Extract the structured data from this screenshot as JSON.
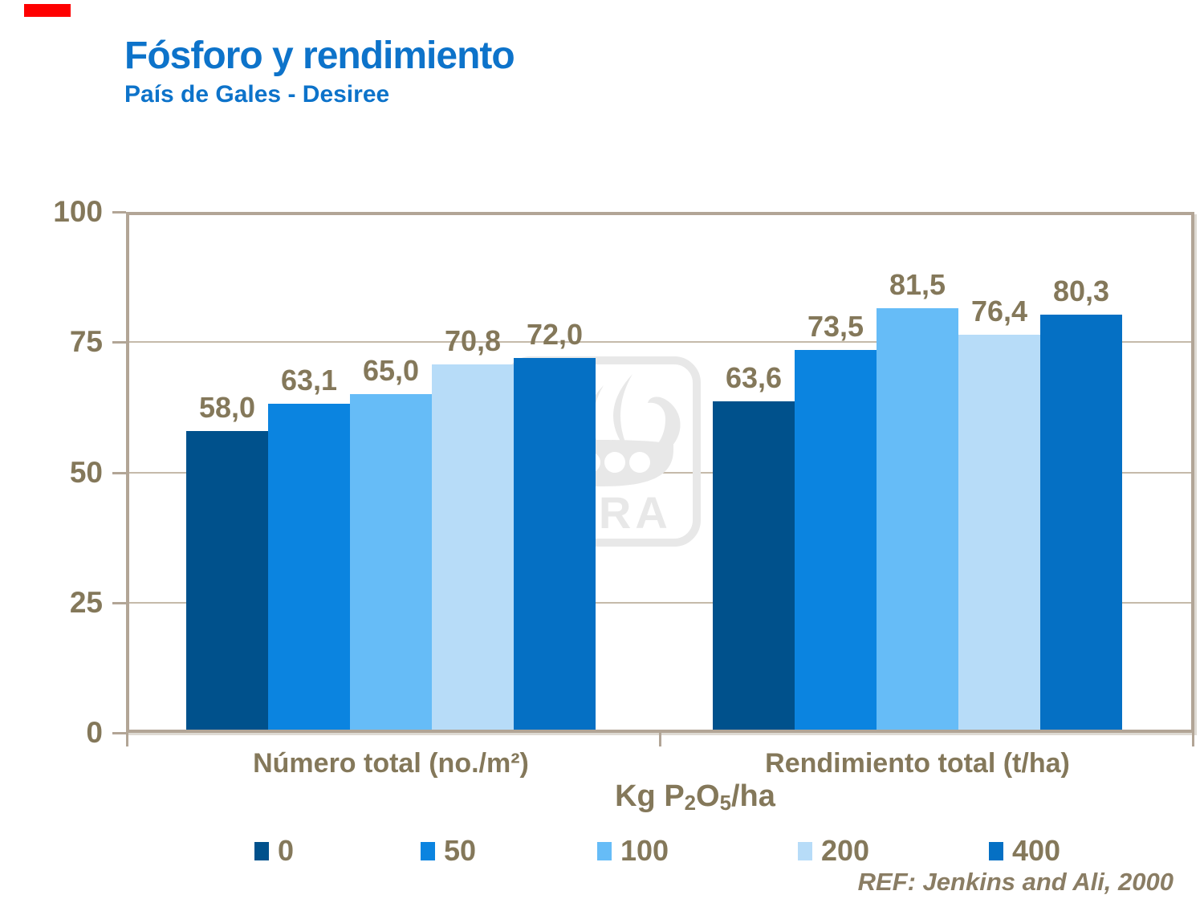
{
  "header": {
    "title": "Fósforo y rendimiento",
    "subtitle": "País de Gales - Desiree"
  },
  "accent": {
    "top_left_bar_color": "#FE0000"
  },
  "watermark": {
    "text": "YARA"
  },
  "footer": {
    "reference": "REF: Jenkins and Ali, 2000"
  },
  "chart_data": {
    "type": "bar",
    "title": "Fósforo y rendimiento",
    "subtitle": "País de Gales - Desiree",
    "categories": [
      "Número total (no./m²)",
      "Rendimiento total (t/ha)"
    ],
    "legend_title": "Kg P2O5/ha",
    "legend_title_parts": [
      {
        "text": "Kg P"
      },
      {
        "text": "2",
        "subscript": true
      },
      {
        "text": "O"
      },
      {
        "text": "5",
        "subscript": true
      },
      {
        "text": "/ha"
      }
    ],
    "series": [
      {
        "name": "0",
        "color": "#00518C",
        "values": [
          58.0,
          63.6
        ]
      },
      {
        "name": "50",
        "color": "#0B84E0",
        "values": [
          63.1,
          73.5
        ]
      },
      {
        "name": "100",
        "color": "#66BCF7",
        "values": [
          65.0,
          81.5
        ]
      },
      {
        "name": "200",
        "color": "#B7DCF8",
        "values": [
          70.8,
          76.4
        ]
      },
      {
        "name": "400",
        "color": "#0570C4",
        "values": [
          72.0,
          80.3
        ]
      }
    ],
    "value_labels": {
      "format": "one-decimal-comma",
      "group1": [
        "58,0",
        "63,1",
        "65,0",
        "70,8",
        "72,0"
      ],
      "group2": [
        "63,6",
        "73,5",
        "81,5",
        "76,4",
        "80,3"
      ]
    },
    "ylim": [
      0,
      100
    ],
    "yticks": [
      0,
      25,
      50,
      75,
      100
    ],
    "grid": "horizontal",
    "legend_position": "bottom",
    "text_color": "#84785A",
    "frame_color": "#B2A596",
    "gridline_color": "#C5BAAA"
  }
}
